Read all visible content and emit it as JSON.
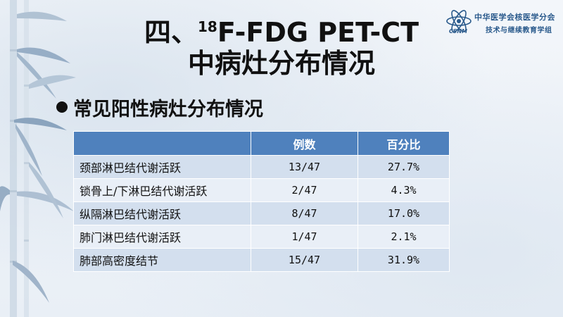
{
  "title": {
    "line1_prefix": "四、",
    "line1_sup": "18",
    "line1_suffix": "F-FDG PET-CT",
    "line2": "中病灶分布情况"
  },
  "logo": {
    "org_line1": "中华医学会核医学分会",
    "org_line2": "技术与继续教育学组",
    "abbrev": "CSNM"
  },
  "bullet": "常见阳性病灶分布情况",
  "table": {
    "headers": [
      "",
      "例数",
      "百分比"
    ],
    "rows": [
      {
        "label": "颈部淋巴结代谢活跃",
        "count": "13/47",
        "percent": "27.7%"
      },
      {
        "label": "锁骨上/下淋巴结代谢活跃",
        "count": "2/47",
        "percent": "4.3%"
      },
      {
        "label": "纵隔淋巴结代谢活跃",
        "count": "8/47",
        "percent": "17.0%"
      },
      {
        "label": "肺门淋巴结代谢活跃",
        "count": "1/47",
        "percent": "2.1%"
      },
      {
        "label": "肺部高密度结节",
        "count": "15/47",
        "percent": "31.9%"
      }
    ]
  },
  "colors": {
    "header_bg": "#4f81bd",
    "row_odd": "#d3dfee",
    "row_even": "#e9eff7",
    "logo_blue": "#2a5a8c"
  }
}
